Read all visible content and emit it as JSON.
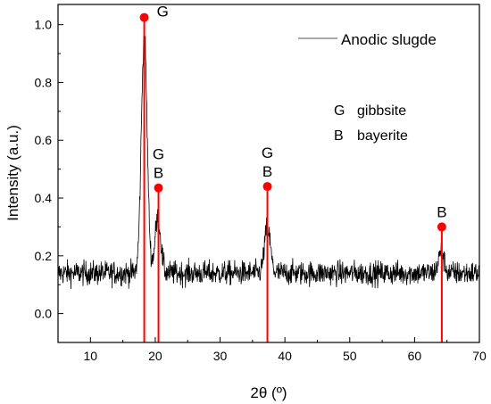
{
  "chart_data": {
    "type": "line",
    "title": "",
    "xlabel": "2θ (º)",
    "ylabel": "Intensity (a.u.)",
    "xlim": [
      5,
      70
    ],
    "ylim": [
      -0.1,
      1.07
    ],
    "xticks": [
      10,
      20,
      30,
      40,
      50,
      60,
      70
    ],
    "yticks": [
      0.0,
      0.2,
      0.4,
      0.6,
      0.8,
      1.0
    ],
    "grid": false,
    "legend": {
      "placement": "top-right",
      "entries": [
        "Anodic slugde"
      ]
    },
    "series": [
      {
        "name": "Anodic slugde",
        "color": "#000000",
        "baseline": 0.14,
        "noise": 0.03,
        "peaks": [
          {
            "x": 18.3,
            "y": 0.96
          },
          {
            "x": 20.4,
            "y": 0.33
          },
          {
            "x": 37.3,
            "y": 0.3
          },
          {
            "x": 64.1,
            "y": 0.21
          }
        ]
      }
    ],
    "reference_peaks": {
      "color": "#ff0000",
      "points": [
        {
          "x": 18.3,
          "y": 1.025,
          "label_top": "G",
          "label_bottom": ""
        },
        {
          "x": 20.5,
          "y": 0.435,
          "label_top": "G",
          "label_bottom": "B"
        },
        {
          "x": 37.3,
          "y": 0.44,
          "label_top": "G",
          "label_bottom": "B"
        },
        {
          "x": 64.2,
          "y": 0.3,
          "label_top": "B",
          "label_bottom": ""
        }
      ]
    },
    "phase_key": [
      {
        "code": "G",
        "name": "gibbsite"
      },
      {
        "code": "B",
        "name": "bayerite"
      }
    ]
  }
}
